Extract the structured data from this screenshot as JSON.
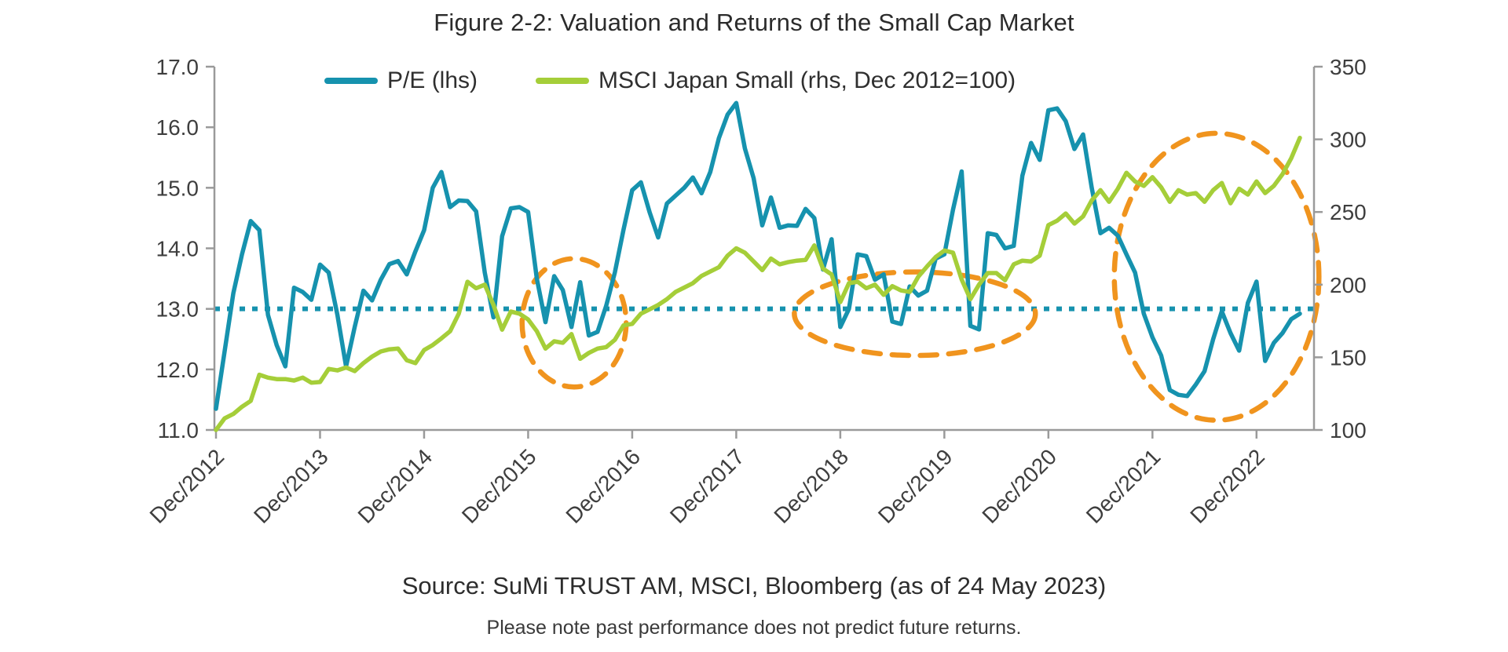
{
  "figure": {
    "title": "Figure 2-2: Valuation and Returns of the Small Cap Market",
    "source": "Source: SuMi TRUST AM, MSCI, Bloomberg (as of 24 May 2023)",
    "disclaimer": "Please note past performance does not predict future returns."
  },
  "colors": {
    "pe_line": "#1692AE",
    "msci_line": "#A5CE39",
    "annotation_orange": "#F0941E",
    "axis_gray": "#9A9A9A",
    "tick_label": "#3E3E3E",
    "background": "#FFFFFF"
  },
  "chart_data": {
    "type": "line",
    "title": "Figure 2-2: Valuation and Returns of the Small Cap Market",
    "x_frequency": "monthly",
    "x_start": "Dec 2012",
    "x_end": "May 2023",
    "x_points": 126,
    "x_tick_labels": [
      "Dec/2012",
      "Dec/2013",
      "Dec/2014",
      "Dec/2015",
      "Dec/2016",
      "Dec/2017",
      "Dec/2018",
      "Dec/2019",
      "Dec/2020",
      "Dec/2021",
      "Dec/2022"
    ],
    "x_tick_month_step": 12,
    "grid": false,
    "legend_position": "top",
    "left_axis": {
      "min": 11.0,
      "max": 17.0,
      "step": 1.0,
      "tick_labels": [
        "17.0",
        "16.0",
        "15.0",
        "14.0",
        "13.0",
        "12.0",
        "11.0"
      ]
    },
    "right_axis": {
      "min": 100,
      "max": 350,
      "step": 50,
      "tick_labels": [
        "350",
        "300",
        "250",
        "200",
        "150",
        "100"
      ]
    },
    "reference_line": {
      "axis": "left",
      "value": 13.0,
      "style": "dotted",
      "color": "#1692AE"
    },
    "series": [
      {
        "name": "P/E (lhs)",
        "axis": "left",
        "color": "#1692AE",
        "values": [
          11.35,
          12.3,
          13.26,
          13.9,
          14.45,
          14.3,
          12.9,
          12.4,
          12.05,
          13.35,
          13.28,
          13.15,
          13.73,
          13.6,
          12.9,
          12.05,
          12.7,
          13.3,
          13.14,
          13.48,
          13.74,
          13.79,
          13.57,
          13.95,
          14.3,
          15.0,
          15.26,
          14.68,
          14.79,
          14.78,
          14.61,
          13.6,
          12.86,
          14.2,
          14.66,
          14.68,
          14.6,
          13.5,
          12.78,
          13.54,
          13.31,
          12.7,
          13.44,
          12.56,
          12.62,
          13.05,
          13.6,
          14.31,
          14.96,
          15.09,
          14.6,
          14.18,
          14.74,
          14.87,
          15.0,
          15.17,
          14.91,
          15.26,
          15.82,
          16.21,
          16.4,
          15.65,
          15.16,
          14.38,
          14.84,
          14.34,
          14.38,
          14.37,
          14.65,
          14.5,
          13.65,
          14.15,
          12.7,
          13.0,
          13.9,
          13.87,
          13.48,
          13.57,
          12.79,
          12.75,
          13.37,
          13.22,
          13.3,
          13.83,
          13.9,
          14.64,
          15.27,
          12.72,
          12.66,
          14.25,
          14.22,
          14.0,
          14.04,
          15.2,
          15.74,
          15.46,
          16.28,
          16.31,
          16.1,
          15.64,
          15.88,
          15.0,
          14.25,
          14.34,
          14.21,
          13.9,
          13.6,
          12.92,
          12.53,
          12.23,
          11.66,
          11.58,
          11.56,
          11.75,
          11.97,
          12.5,
          12.96,
          12.6,
          12.31,
          13.1,
          13.45,
          12.14,
          12.44,
          12.6,
          12.83,
          12.92
        ]
      },
      {
        "name": "MSCI Japan Small (rhs, Dec 2012=100)",
        "axis": "right",
        "color": "#A5CE39",
        "values": [
          100,
          108,
          111,
          116,
          120,
          138,
          136,
          135,
          135,
          134,
          136,
          132.5,
          133,
          142,
          141,
          143,
          140.5,
          146,
          150.5,
          154,
          155.5,
          156,
          148,
          146,
          155,
          158.5,
          163,
          168,
          180,
          202,
          197.5,
          200,
          186,
          169,
          181.5,
          180,
          176,
          168,
          156,
          161,
          160,
          166,
          149,
          153,
          156,
          157,
          162,
          172,
          173,
          180,
          183,
          186,
          190,
          195,
          198,
          201,
          206,
          209,
          212,
          220,
          225,
          222,
          216,
          210,
          218,
          214,
          215.5,
          216.5,
          217,
          227,
          211,
          207,
          188,
          201,
          202,
          197.5,
          200,
          193,
          199,
          196,
          195,
          205.5,
          212.5,
          219,
          223.5,
          222,
          203.5,
          190,
          200,
          208,
          208,
          203,
          214,
          216.5,
          216,
          220,
          241,
          244,
          249,
          242,
          247,
          258,
          265,
          257,
          266,
          277,
          271,
          268,
          274,
          267,
          257,
          265,
          262,
          263,
          257,
          265,
          270,
          256,
          266,
          262,
          271,
          263,
          268,
          276,
          287,
          301
        ]
      }
    ],
    "annotations": {
      "style": "dashed-ellipse",
      "color": "#F0941E",
      "ellipses": [
        {
          "center_month_index": 41.3,
          "center_pe_value": 12.77,
          "rx_months": 6.0,
          "ry_pe_units": 1.06
        },
        {
          "center_month_index": 80.6,
          "center_pe_value": 12.92,
          "rx_months": 13.9,
          "ry_pe_units": 0.69
        },
        {
          "center_month_index": 115.4,
          "center_pe_value": 13.53,
          "rx_months": 11.8,
          "ry_pe_units": 2.37
        }
      ]
    }
  }
}
